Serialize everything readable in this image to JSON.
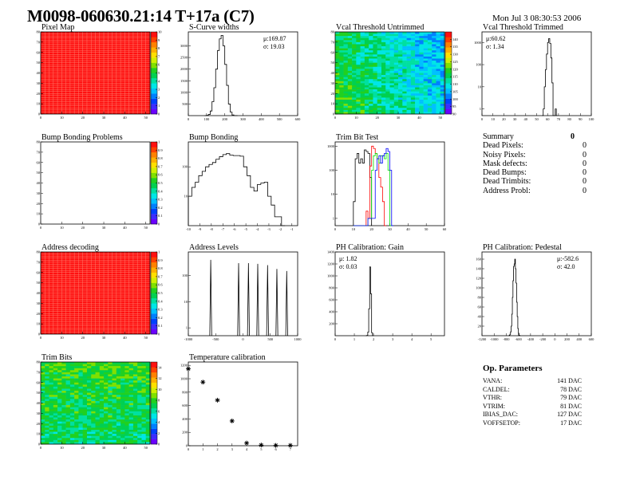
{
  "header": {
    "title": "M0098-060630.21:14 T+17a (C7)",
    "date": "Mon Jul  3 08:30:53 2006"
  },
  "summary": {
    "title": "Summary",
    "total": "0",
    "items": [
      {
        "label": "Dead Pixels:",
        "value": "0"
      },
      {
        "label": "Noisy Pixels:",
        "value": "0"
      },
      {
        "label": "Mask defects:",
        "value": "0"
      },
      {
        "label": "Dead Bumps:",
        "value": "0"
      },
      {
        "label": "Dead Trimbits:",
        "value": "0"
      },
      {
        "label": "Address Probl:",
        "value": "0"
      }
    ]
  },
  "op_parameters": {
    "title": "Op. Parameters",
    "items": [
      {
        "label": "VANA:",
        "value": "141 DAC"
      },
      {
        "label": "CALDEL:",
        "value": "78 DAC"
      },
      {
        "label": "VTHR:",
        "value": "79 DAC"
      },
      {
        "label": "VTRIM:",
        "value": "81 DAC"
      },
      {
        "label": "IBIAS_DAC:",
        "value": "127 DAC"
      },
      {
        "label": "VOFFSETOP:",
        "value": "17 DAC"
      }
    ]
  },
  "colors": {
    "frame": "#000000",
    "palette": [
      "#6a00ff",
      "#3c2cff",
      "#0040ff",
      "#0080ff",
      "#00c0ff",
      "#00e6e6",
      "#00e0a0",
      "#00d050",
      "#20d020",
      "#80e000",
      "#d0f000",
      "#ffe000",
      "#ffb000",
      "#ff8000",
      "#ff4000",
      "#ff1010"
    ],
    "series": [
      "#000000",
      "#ff0000",
      "#00e000",
      "#0000ff"
    ]
  },
  "chart_data": [
    {
      "id": "pixel-map",
      "type": "heatmap",
      "title": "Pixel Map",
      "xlim": [
        0,
        52
      ],
      "ylim": [
        0,
        80
      ],
      "xticks": [
        0,
        10,
        20,
        30,
        40,
        50
      ],
      "yticks": [
        0,
        10,
        20,
        30,
        40,
        50,
        60,
        70,
        80
      ],
      "zlim": [
        0,
        10
      ],
      "zticks": [
        0,
        1,
        2,
        3,
        4,
        5,
        6,
        7,
        8,
        9,
        10
      ],
      "fill": "uniform-max"
    },
    {
      "id": "s-curve-widths",
      "type": "bar",
      "title": "S-Curve widths",
      "xlim": [
        0,
        600
      ],
      "ylim": [
        0,
        3600
      ],
      "xticks": [
        0,
        100,
        200,
        300,
        400,
        500,
        600
      ],
      "yticks": [
        500,
        1000,
        1500,
        2000,
        2500,
        3000
      ],
      "bin_start": 90,
      "bin_width": 10,
      "series": [
        {
          "values": [
            0,
            10,
            50,
            200,
            600,
            1200,
            2000,
            2800,
            3300,
            3450,
            3000,
            2200,
            1300,
            500,
            150,
            30,
            5,
            0
          ]
        }
      ],
      "stats": {
        "mean": "μ:169.87",
        "sigma": "σ: 19.03"
      }
    },
    {
      "id": "vcal-threshold-untrimmed",
      "type": "heatmap",
      "title": "Vcal Threshold Untrimmed",
      "xlim": [
        0,
        52
      ],
      "ylim": [
        0,
        80
      ],
      "xticks": [
        0,
        10,
        20,
        30,
        40,
        50
      ],
      "yticks": [
        0,
        10,
        20,
        30,
        40,
        50,
        60,
        70,
        80
      ],
      "zlim": [
        90,
        145
      ],
      "zticks": [
        90,
        95,
        100,
        105,
        110,
        115,
        120,
        125,
        130,
        135,
        140
      ],
      "fill": "noise-gradient"
    },
    {
      "id": "vcal-threshold-trimmed",
      "type": "bar",
      "title": "Vcal Threshold Trimmed",
      "log_y": true,
      "xlim": [
        0,
        100
      ],
      "ylim": [
        0.5,
        3000
      ],
      "xticks": [
        0,
        10,
        20,
        30,
        40,
        50,
        60,
        70,
        80,
        90,
        100
      ],
      "yticks": [
        1,
        10,
        100,
        1000
      ],
      "bin_start": 55,
      "bin_width": 1,
      "series": [
        {
          "values": [
            0,
            1,
            10,
            60,
            300,
            1000,
            1500,
            900,
            200,
            15,
            0,
            0,
            1,
            0
          ]
        }
      ],
      "stats": {
        "mean": "μ:60.62",
        "sigma": "σ: 1.34"
      }
    },
    {
      "id": "bump-bonding-problems",
      "type": "heatmap",
      "title": "Bump Bonding Problems",
      "xlim": [
        0,
        52
      ],
      "ylim": [
        0,
        80
      ],
      "xticks": [
        0,
        10,
        20,
        30,
        40,
        50
      ],
      "yticks": [
        0,
        10,
        20,
        30,
        40,
        50,
        60,
        70,
        80
      ],
      "zlim": [
        0,
        1
      ],
      "zticks": [
        0,
        0.1,
        0.2,
        0.3,
        0.4,
        0.5,
        0.6,
        0.7,
        0.8,
        0.9,
        1
      ],
      "fill": "empty"
    },
    {
      "id": "bump-bonding",
      "type": "bar",
      "title": "Bump Bonding",
      "log_y": true,
      "xlim": [
        -10,
        -0.5
      ],
      "ylim": [
        1,
        700
      ],
      "xticks": [
        -10,
        -9,
        -8,
        -7,
        -6,
        -5,
        -4,
        -3,
        -2,
        -1
      ],
      "yticks": [
        10,
        100
      ],
      "bin_start": -10,
      "bin_width": 0.3,
      "series": [
        {
          "values": [
            10,
            20,
            30,
            50,
            70,
            100,
            120,
            140,
            180,
            220,
            260,
            280,
            250,
            240,
            240,
            230,
            100,
            50,
            20,
            15,
            25,
            28,
            30,
            10,
            5,
            2,
            2,
            1
          ]
        }
      ]
    },
    {
      "id": "trim-bit-test",
      "type": "bar",
      "title": "Trim Bit Test",
      "log_y": true,
      "xlim": [
        0,
        60
      ],
      "ylim": [
        0.5,
        1500
      ],
      "xticks": [
        0,
        10,
        20,
        30,
        40,
        50,
        60
      ],
      "yticks": [
        1,
        10,
        100,
        1000
      ],
      "bin_start": 10,
      "bin_width": 1,
      "series": [
        {
          "color": "#000000",
          "values": [
            5,
            300,
            500,
            200,
            300,
            200,
            700,
            600,
            500,
            50
          ]
        },
        {
          "color": "#ff0000",
          "values": [
            0,
            0,
            0,
            0,
            0,
            0,
            0,
            2,
            1,
            150,
            1000,
            800,
            500,
            300,
            50,
            20,
            5,
            0
          ]
        },
        {
          "color": "#00e000",
          "values": [
            0,
            0,
            0,
            0,
            0,
            0,
            0,
            0,
            1,
            1,
            100,
            400,
            500,
            300,
            200,
            400,
            400,
            300,
            500,
            100,
            0
          ]
        },
        {
          "color": "#0000ff",
          "values": [
            0,
            0,
            0,
            0,
            0,
            0,
            0,
            0,
            1,
            1,
            1,
            1,
            100,
            300,
            400,
            200,
            400,
            500,
            800,
            600,
            100,
            0
          ]
        }
      ]
    },
    {
      "id": "summary"
    },
    {
      "id": "address-decoding",
      "type": "heatmap",
      "title": "Address decoding",
      "xlim": [
        0,
        52
      ],
      "ylim": [
        0,
        80
      ],
      "xticks": [
        0,
        10,
        20,
        30,
        40,
        50
      ],
      "yticks": [
        0,
        10,
        20,
        30,
        40,
        50,
        60,
        70,
        80
      ],
      "zlim": [
        0,
        1
      ],
      "zticks": [
        0,
        0.1,
        0.2,
        0.3,
        0.4,
        0.5,
        0.6,
        0.7,
        0.8,
        0.9,
        1
      ],
      "fill": "uniform-max"
    },
    {
      "id": "address-levels",
      "type": "spikes",
      "title": "Address Levels",
      "log_y": true,
      "xlim": [
        -1000,
        1000
      ],
      "ylim": [
        0.5,
        800
      ],
      "xticks": [
        -1000,
        -500,
        0,
        500,
        1000
      ],
      "yticks": [
        1,
        10,
        100
      ],
      "peaks": [
        {
          "x": -590,
          "y": 400
        },
        {
          "x": -80,
          "y": 300
        },
        {
          "x": 100,
          "y": 300
        },
        {
          "x": 270,
          "y": 280
        },
        {
          "x": 450,
          "y": 250
        },
        {
          "x": 620,
          "y": 180
        },
        {
          "x": 800,
          "y": 150
        }
      ]
    },
    {
      "id": "ph-calibration-gain",
      "type": "bar",
      "title": "PH Calibration: Gain",
      "xlim": [
        0,
        5.7
      ],
      "ylim": [
        0,
        1400
      ],
      "xticks": [
        0,
        1,
        2,
        3,
        4,
        5
      ],
      "yticks": [
        200,
        400,
        600,
        800,
        1000,
        1200,
        1400
      ],
      "bin_start": 1.6,
      "bin_width": 0.05,
      "series": [
        {
          "values": [
            0,
            5,
            60,
            450,
            1150,
            700,
            50,
            0
          ]
        }
      ],
      "stats": {
        "mean": "μ: 1.82",
        "sigma": "σ: 0.03"
      }
    },
    {
      "id": "ph-calibration-pedestal",
      "type": "bar",
      "title": "PH Calibration: Pedestal",
      "xlim": [
        -1200,
        600
      ],
      "ylim": [
        0,
        175
      ],
      "xticks": [
        -1200,
        -1000,
        -800,
        -600,
        -400,
        -200,
        0,
        200,
        400,
        600
      ],
      "yticks": [
        20,
        40,
        60,
        80,
        100,
        120,
        140,
        160
      ],
      "bin_start": -760,
      "bin_width": 10,
      "series": [
        {
          "values": [
            0,
            1,
            3,
            8,
            20,
            45,
            80,
            115,
            145,
            150,
            160,
            140,
            110,
            70,
            40,
            15,
            5,
            1,
            0
          ]
        }
      ],
      "stats": {
        "mean": "μ:-582.6",
        "sigma": "σ: 42.0"
      }
    },
    {
      "id": "trim-bits",
      "type": "heatmap",
      "title": "Trim Bits",
      "xlim": [
        0,
        52
      ],
      "ylim": [
        0,
        80
      ],
      "xticks": [
        0,
        10,
        20,
        30,
        40,
        50
      ],
      "yticks": [
        0,
        10,
        20,
        30,
        40,
        50,
        60,
        70,
        80
      ],
      "zlim": [
        0,
        15
      ],
      "zticks": [
        0,
        2,
        4,
        6,
        8,
        10,
        12,
        14
      ],
      "fill": "noise-mid"
    },
    {
      "id": "temperature-calibration",
      "type": "scatter",
      "title": "Temperature calibration",
      "xlim": [
        0,
        7.5
      ],
      "ylim": [
        0,
        1250
      ],
      "xticks": [
        0,
        1,
        2,
        3,
        4,
        5,
        6,
        7
      ],
      "yticks": [
        0,
        200,
        400,
        600,
        800,
        1000,
        1200
      ],
      "points": [
        [
          0,
          1150
        ],
        [
          1,
          950
        ],
        [
          2,
          680
        ],
        [
          3,
          370
        ],
        [
          4,
          40
        ],
        [
          5,
          10
        ],
        [
          6,
          5
        ],
        [
          7,
          5
        ]
      ]
    },
    {
      "id": "op-parameters"
    }
  ]
}
